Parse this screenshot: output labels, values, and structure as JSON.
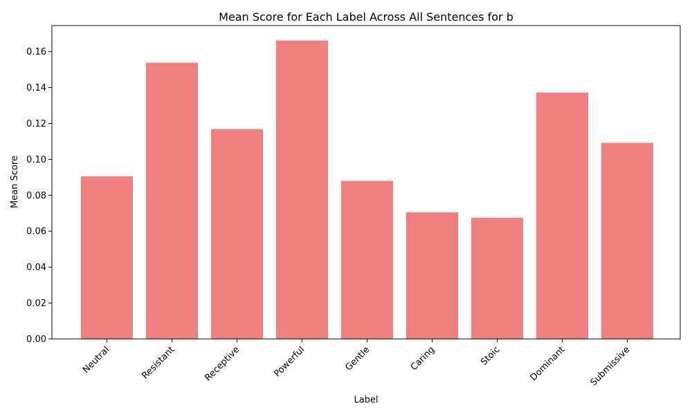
{
  "chart_data": {
    "type": "bar",
    "title": "Mean Score for Each Label Across All Sentences for b",
    "xlabel": "Label",
    "ylabel": "Mean Score",
    "categories": [
      "Neutral",
      "Resistant",
      "Receptive",
      "Powerful",
      "Gentle",
      "Caring",
      "Stoic",
      "Dominant",
      "Submissive"
    ],
    "values": [
      0.0905,
      0.1538,
      0.1168,
      0.1662,
      0.088,
      0.0705,
      0.0675,
      0.1372,
      0.1092
    ],
    "ylim": [
      0,
      0.1745
    ],
    "yticks": [
      0.0,
      0.02,
      0.04,
      0.06,
      0.08,
      0.1,
      0.12,
      0.14,
      0.16
    ],
    "ytick_labels": [
      "0.00",
      "0.02",
      "0.04",
      "0.06",
      "0.08",
      "0.10",
      "0.12",
      "0.14",
      "0.16"
    ],
    "bar_color": "#f08080",
    "grid": false,
    "legend": "none"
  }
}
